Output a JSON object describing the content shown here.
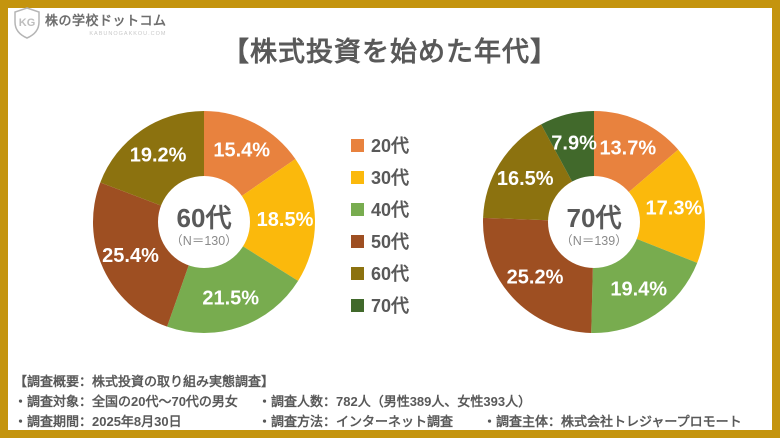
{
  "brand": {
    "logo_monogram": "KG",
    "name": "株の学校ドットコム",
    "tagline": "KABUNOGAKKOU.COM"
  },
  "title": "【株式投資を始めた年代】",
  "legend": {
    "items": [
      {
        "label": "20代",
        "color": "#E8823E"
      },
      {
        "label": "30代",
        "color": "#FBB90C"
      },
      {
        "label": "40代",
        "color": "#78AC4F"
      },
      {
        "label": "50代",
        "color": "#9E4F22"
      },
      {
        "label": "60代",
        "color": "#8C720F"
      },
      {
        "label": "70代",
        "color": "#41692B"
      }
    ]
  },
  "chart_data": [
    {
      "type": "pie",
      "variant": "donut",
      "center_label": "60代",
      "center_sublabel": "（N＝130）",
      "start_angle_deg": 0,
      "direction": "clockwise",
      "slices": [
        {
          "label": "20代",
          "value": 15.4,
          "color": "#E8823E"
        },
        {
          "label": "30代",
          "value": 18.5,
          "color": "#FBB90C"
        },
        {
          "label": "40代",
          "value": 21.5,
          "color": "#78AC4F"
        },
        {
          "label": "50代",
          "value": 25.4,
          "color": "#9E4F22"
        },
        {
          "label": "60代",
          "value": 19.2,
          "color": "#8C720F"
        }
      ]
    },
    {
      "type": "pie",
      "variant": "donut",
      "center_label": "70代",
      "center_sublabel": "（N＝139）",
      "start_angle_deg": 0,
      "direction": "clockwise",
      "slices": [
        {
          "label": "20代",
          "value": 13.7,
          "color": "#E8823E"
        },
        {
          "label": "30代",
          "value": 17.3,
          "color": "#FBB90C"
        },
        {
          "label": "40代",
          "value": 19.4,
          "color": "#78AC4F"
        },
        {
          "label": "50代",
          "value": 25.2,
          "color": "#9E4F22"
        },
        {
          "label": "60代",
          "value": 16.5,
          "color": "#8C720F"
        },
        {
          "label": "70代",
          "value": 7.9,
          "color": "#41692B"
        }
      ]
    }
  ],
  "footer": {
    "heading": "【調査概要：株式投資の取り組み実態調査】",
    "survey_target": "・調査対象：全国の20代～70代の男女",
    "survey_count": "・調査人数：782人（男性389人、女性393人）",
    "survey_period": "・調査期間：2025年8月30日",
    "survey_method": "・調査方法：インターネット調査",
    "survey_org": "・調査主体：株式会社トレジャープロモート"
  },
  "colors": {
    "border_gold": "#C4940E",
    "text_dark": "#595959",
    "slice_label": "#FFFFFF"
  }
}
